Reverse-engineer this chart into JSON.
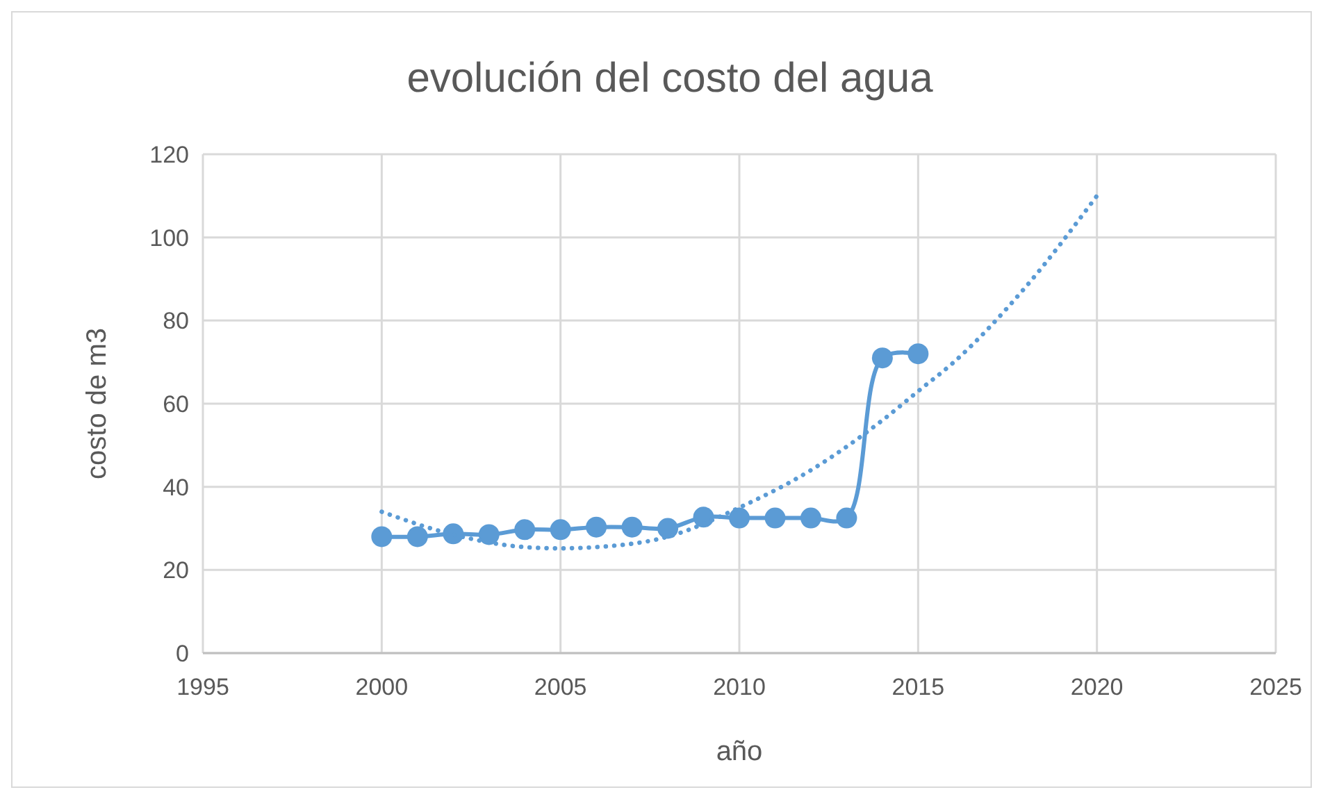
{
  "chart_data": {
    "type": "line",
    "title": "evolución del costo del agua",
    "xlabel": "año",
    "ylabel": "costo de m3",
    "xlim": [
      1995,
      2025
    ],
    "xticks": [
      1995,
      2000,
      2005,
      2010,
      2015,
      2020,
      2025
    ],
    "ylim": [
      0,
      120
    ],
    "yticks": [
      0,
      20,
      40,
      60,
      80,
      100,
      120
    ],
    "grid": true,
    "series": [
      {
        "color": "#5b9bd5",
        "marker": "circle",
        "line_style": "solid",
        "x": [
          2000,
          2001,
          2002,
          2003,
          2004,
          2005,
          2006,
          2007,
          2008,
          2009,
          2010,
          2011,
          2012,
          2013,
          2014,
          2015
        ],
        "values": [
          28,
          28,
          28.7,
          28.5,
          29.7,
          29.7,
          30.3,
          30.3,
          30,
          32.7,
          32.5,
          32.5,
          32.5,
          32.5,
          71,
          72
        ]
      },
      {
        "type": "line",
        "color": "#5b9bd5",
        "marker": "none",
        "line_style": "dotted",
        "x": [
          2000,
          2002,
          2004,
          2005,
          2006,
          2008,
          2010,
          2012,
          2014,
          2015,
          2016,
          2018,
          2020
        ],
        "values": [
          34,
          28.5,
          25.5,
          25.2,
          25.5,
          28,
          35,
          44,
          56,
          63,
          70,
          88,
          110
        ]
      }
    ]
  }
}
